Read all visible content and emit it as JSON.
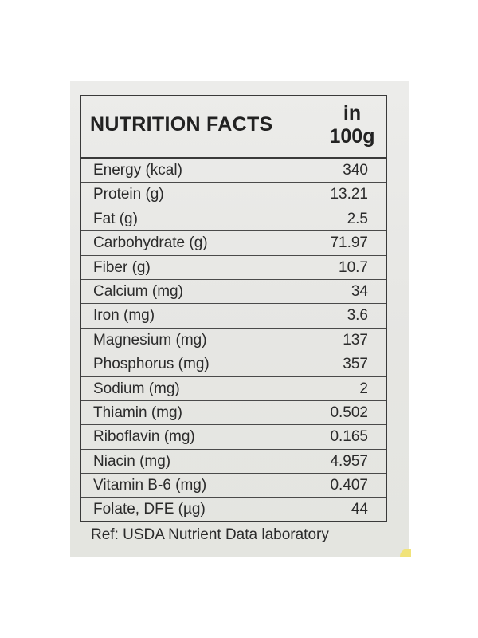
{
  "panel": {
    "title": "NUTRITION FACTS",
    "unit_line1": "in",
    "unit_line2": "100g"
  },
  "rows": [
    {
      "nutrient": "Energy (kcal)",
      "amount": "340"
    },
    {
      "nutrient": "Protein (g)",
      "amount": "13.21"
    },
    {
      "nutrient": "Fat (g)",
      "amount": "2.5"
    },
    {
      "nutrient": "Carbohydrate (g)",
      "amount": "71.97"
    },
    {
      "nutrient": "Fiber (g)",
      "amount": "10.7"
    },
    {
      "nutrient": "Calcium (mg)",
      "amount": "34"
    },
    {
      "nutrient": "Iron (mg)",
      "amount": "3.6"
    },
    {
      "nutrient": "Magnesium (mg)",
      "amount": "137"
    },
    {
      "nutrient": "Phosphorus (mg)",
      "amount": "357"
    },
    {
      "nutrient": "Sodium (mg)",
      "amount": "2"
    },
    {
      "nutrient": "Thiamin (mg)",
      "amount": "0.502"
    },
    {
      "nutrient": "Riboflavin (mg)",
      "amount": "0.165"
    },
    {
      "nutrient": "Niacin (mg)",
      "amount": "4.957"
    },
    {
      "nutrient": "Vitamin B-6 (mg)",
      "amount": "0.407"
    },
    {
      "nutrient": "Folate, DFE (µg)",
      "amount": "44"
    }
  ],
  "reference": "Ref: USDA Nutrient Data laboratory"
}
